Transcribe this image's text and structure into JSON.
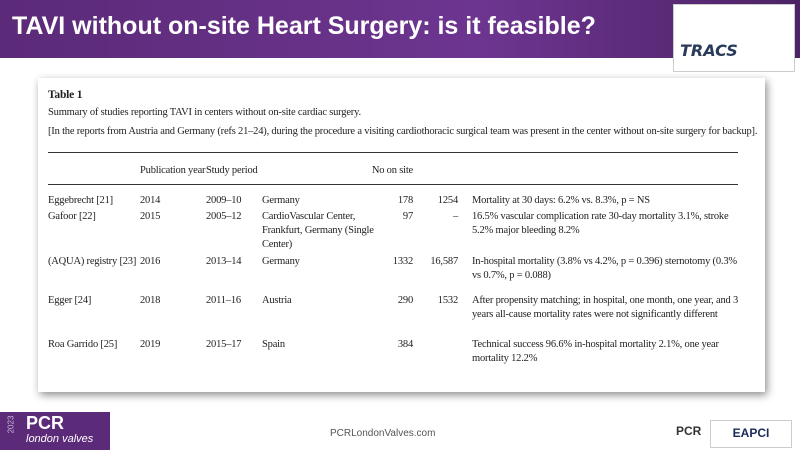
{
  "header": {
    "title": "TAVI without on-site Heart Surgery: is it feasible?",
    "logo": "TRACS"
  },
  "table": {
    "label": "Table 1",
    "caption": [
      "Summary of studies reporting TAVI in centers without on-site cardiac surgery.",
      "[In the reports from Austria and Germany (refs 21–24), during the procedure a visiting cardiothoracic surgical team was present in the center without on-site surgery for backup]."
    ],
    "columns": [
      null,
      "Publication year",
      "Study period",
      null,
      "No on site",
      null,
      null
    ],
    "rows": [
      [
        "Eggebrecht [21]",
        "2014",
        "2009–10",
        "Germany",
        "178",
        "1254",
        "Mortality at 30 days: 6.2% vs. 8.3%, p = NS"
      ],
      [
        "Gafoor [22]",
        "2015",
        "2005–12",
        "CardioVascular Center, Frankfurt, Germany (Single Center)",
        "97",
        "–",
        "16.5% vascular complication rate 30-day mortality 3.1%, stroke 5.2% major bleeding 8.2%"
      ],
      [
        "(AQUA) registry [23]",
        "2016",
        "2013–14",
        "Germany",
        "1332",
        "16,587",
        "In-hospital mortality (3.8% vs 4.2%, p = 0.396) sternotomy (0.3% vs 0.7%, p = 0.088)"
      ],
      [
        "Egger [24]",
        "2018",
        "2011–16",
        "Austria",
        "290",
        "1532",
        "After propensity matching; in hospital, one month, one year, and 3 years all-cause mortality rates were not significantly different"
      ],
      [
        "Roa Garrido [25]",
        "2019",
        "2015–17",
        "Spain",
        "384",
        null,
        "Technical success 96.6% in-hospital mortality 2.1%, one year mortality 12.2%"
      ]
    ]
  },
  "footer": {
    "year": "2023",
    "brand": "PCR",
    "brand_sub": "london valves",
    "url": "PCRLondonValves.com",
    "logo_pcr": "PCR",
    "logo_eapci": "EAPCI"
  }
}
